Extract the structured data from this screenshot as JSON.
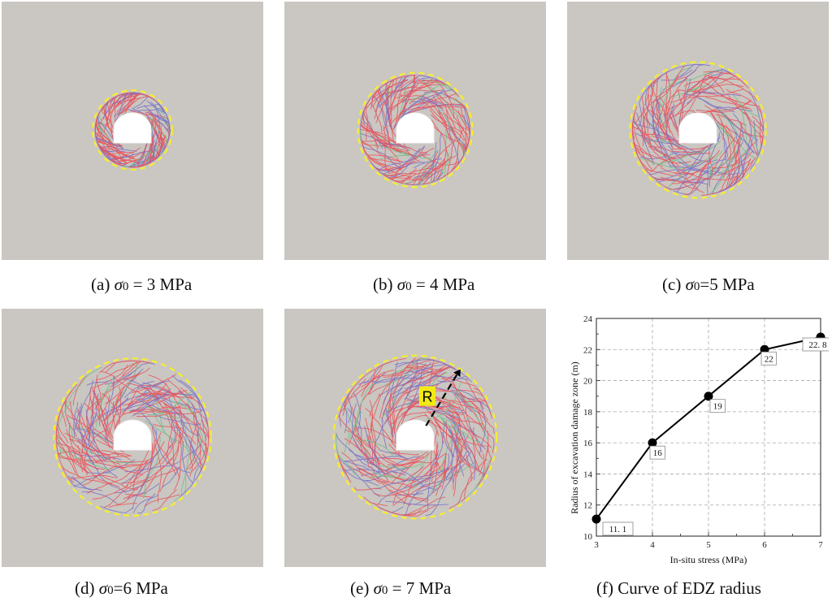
{
  "panels": [
    {
      "id": "a",
      "caption_prefix": "(a)",
      "caption_symbol": "σ",
      "caption_sub": "0",
      "caption_rest": " = 3 MPa",
      "stress": 3,
      "edz_radius": 11.1
    },
    {
      "id": "b",
      "caption_prefix": "(b)",
      "caption_symbol": "σ",
      "caption_sub": "0",
      "caption_rest": " = 4 MPa",
      "stress": 4,
      "edz_radius": 16
    },
    {
      "id": "c",
      "caption_prefix": "(c)",
      "caption_symbol": "σ",
      "caption_sub": "0",
      "caption_rest": "=5 MPa",
      "stress": 5,
      "edz_radius": 19
    },
    {
      "id": "d",
      "caption_prefix": "(d)",
      "caption_symbol": "σ",
      "caption_sub": "0",
      "caption_rest": "=6 MPa",
      "stress": 6,
      "edz_radius": 22
    },
    {
      "id": "e",
      "caption_prefix": "(e)",
      "caption_symbol": "σ",
      "caption_sub": "0",
      "caption_rest": " = 7 MPa",
      "stress": 7,
      "edz_radius": 22.8,
      "radius_marker_label": "R"
    }
  ],
  "colors": {
    "rock": "#cac6c1",
    "boundary": "#f5ef2b",
    "crack_primary": "#e8545c",
    "crack_secondary": "#7a72c8",
    "crack_tertiary": "#6fc08a",
    "r_label_bg": "#f2ea14"
  },
  "chart_caption": "(f)  Curve of EDZ radius",
  "chart_data": {
    "type": "line",
    "x": [
      3,
      4,
      5,
      6,
      7
    ],
    "values": [
      11.1,
      16,
      19,
      22,
      22.8
    ],
    "data_labels": [
      "11. 1",
      "16",
      "19",
      "22",
      "22. 8"
    ],
    "xlabel": "In-situ stress (MPa)",
    "ylabel": "Radius of excavation damage zone (m)",
    "xlim": [
      3,
      7
    ],
    "ylim": [
      10,
      24
    ],
    "xticks": [
      "3",
      "4",
      "5",
      "6",
      "7"
    ],
    "yticks": [
      "10",
      "12",
      "14",
      "16",
      "18",
      "20",
      "22",
      "24"
    ],
    "grid": true
  }
}
